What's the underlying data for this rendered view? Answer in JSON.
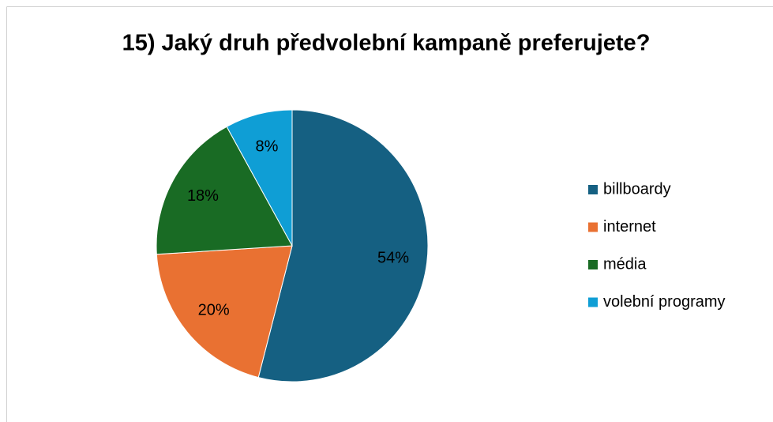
{
  "chart_data": {
    "type": "pie",
    "title": "15) Jaký druh předvolební kampaně preferujete?",
    "categories": [
      "billboardy",
      "internet",
      "média",
      "volební programy"
    ],
    "values": [
      54,
      20,
      18,
      8
    ],
    "value_labels": [
      "54%",
      "20%",
      "18%",
      "8%"
    ],
    "colors": [
      "#156082",
      "#e97132",
      "#196b24",
      "#0f9ed5"
    ],
    "legend": "right"
  }
}
